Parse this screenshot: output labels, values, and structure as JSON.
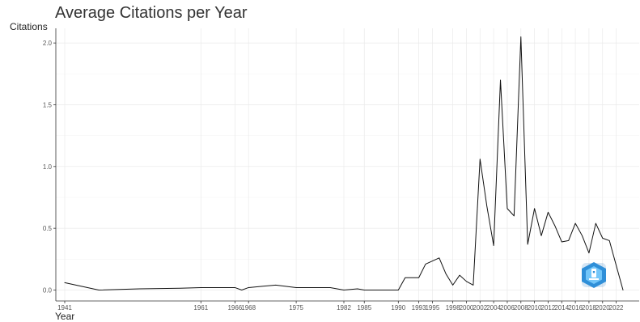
{
  "chart_data": {
    "type": "line",
    "title": "Average Citations per Year",
    "xlabel": "Year",
    "ylabel": "Citations",
    "xlim": [
      1941,
      2023
    ],
    "ylim": [
      0,
      2.05
    ],
    "grid": true,
    "colors": {
      "line": "#111111",
      "grid": "#eaeaea",
      "axis": "#333333",
      "logo": "#2f8fd8"
    },
    "x_ticks": [
      1941,
      1961,
      1966,
      1968,
      1975,
      1982,
      1985,
      1990,
      1993,
      1995,
      1998,
      2000,
      2002,
      2004,
      2006,
      2008,
      2010,
      2012,
      2014,
      2016,
      2018,
      2020,
      2022
    ],
    "x_tick_labels": [
      "1941",
      "1961",
      "1966",
      "1968",
      "1975",
      "1982",
      "1985",
      "1990",
      "1993",
      "1995",
      "1998",
      "2000",
      "2002",
      "2004",
      "2006",
      "2008",
      "2010",
      "2012",
      "2014",
      "2016",
      "2018",
      "2020",
      "2022"
    ],
    "y_ticks": [
      0,
      0.5,
      1.0,
      1.5,
      2.0
    ],
    "y_tick_labels": [
      "0.0",
      "0.5",
      "1.0",
      "1.5",
      "2.0"
    ],
    "series": [
      {
        "x": [
          1941,
          1946,
          1952,
          1958,
          1961,
          1966,
          1967,
          1968,
          1970,
          1972,
          1975,
          1978,
          1980,
          1982,
          1984,
          1985,
          1990,
          1991,
          1992,
          1993,
          1994,
          1996,
          1997,
          1998,
          1999,
          2000,
          2001,
          2002,
          2003,
          2004,
          2005,
          2006,
          2007,
          2008,
          2009,
          2010,
          2011,
          2012,
          2013,
          2014,
          2015,
          2016,
          2017,
          2018,
          2019,
          2020,
          2021,
          2022,
          2023
        ],
        "values": [
          0.06,
          0.0,
          0.01,
          0.015,
          0.02,
          0.02,
          0.0,
          0.02,
          0.03,
          0.04,
          0.02,
          0.02,
          0.02,
          0.0,
          0.01,
          0.0,
          0.0,
          0.1,
          0.1,
          0.1,
          0.21,
          0.26,
          0.13,
          0.04,
          0.12,
          0.07,
          0.04,
          1.06,
          0.68,
          0.36,
          1.7,
          0.66,
          0.6,
          2.05,
          0.37,
          0.66,
          0.44,
          0.63,
          0.52,
          0.39,
          0.4,
          0.54,
          0.44,
          0.3,
          0.54,
          0.42,
          0.4,
          0.2,
          0.0
        ]
      }
    ]
  }
}
